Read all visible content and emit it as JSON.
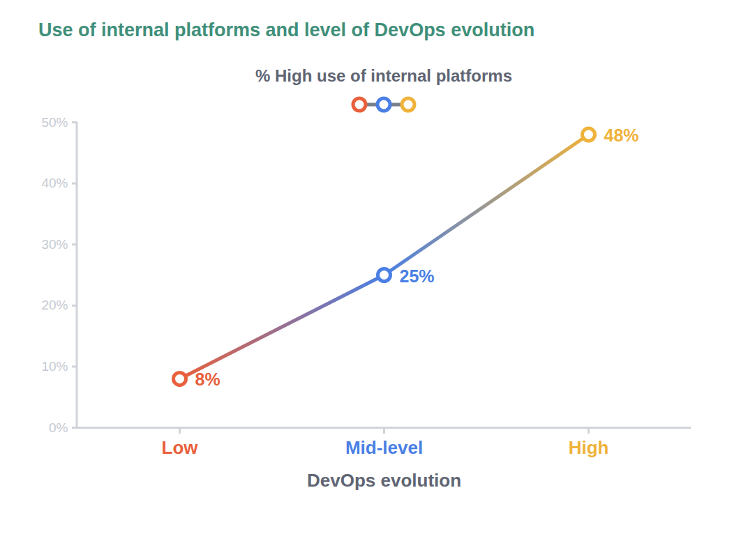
{
  "chart_data": {
    "type": "line",
    "title": "Use of internal platforms and level of DevOps evolution",
    "xlabel": "DevOps evolution",
    "categories": [
      "Low",
      "Mid-level",
      "High"
    ],
    "series": [
      {
        "name": "% High use of internal platforms",
        "colors": [
          "#e8603c",
          "#4a7fe5",
          "#efb23a"
        ],
        "values": [
          8,
          25,
          48
        ],
        "value_labels": [
          "8%",
          "25%",
          "48%"
        ],
        "marker": "circle"
      }
    ],
    "ylim": [
      0,
      50
    ],
    "yticks": [
      {
        "value": 0,
        "label": "0%"
      },
      {
        "value": 10,
        "label": "10%"
      },
      {
        "value": 20,
        "label": "20%"
      },
      {
        "value": 30,
        "label": "30%"
      },
      {
        "value": 40,
        "label": "40%"
      },
      {
        "value": 50,
        "label": "50%"
      }
    ],
    "legend": "top",
    "data_labels": true,
    "grid": false
  }
}
